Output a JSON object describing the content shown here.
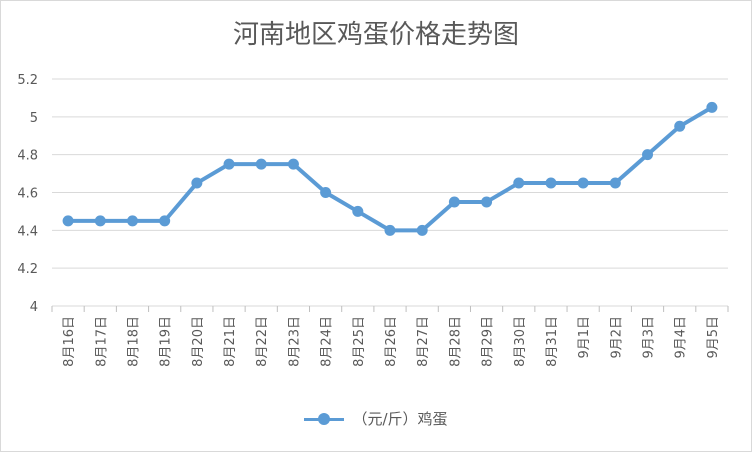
{
  "chart_data": {
    "type": "line",
    "title": "河南地区鸡蛋价格走势图",
    "categories": [
      "8月16日",
      "8月17日",
      "8月18日",
      "8月19日",
      "8月20日",
      "8月21日",
      "8月22日",
      "8月23日",
      "8月24日",
      "8月25日",
      "8月26日",
      "8月27日",
      "8月28日",
      "8月29日",
      "8月30日",
      "8月31日",
      "9月1日",
      "9月2日",
      "9月3日",
      "9月4日",
      "9月5日"
    ],
    "series": [
      {
        "name": "（元/斤）鸡蛋",
        "values": [
          4.45,
          4.45,
          4.45,
          4.45,
          4.65,
          4.75,
          4.75,
          4.75,
          4.6,
          4.5,
          4.4,
          4.4,
          4.55,
          4.55,
          4.65,
          4.65,
          4.65,
          4.65,
          4.8,
          4.95,
          5.05
        ]
      }
    ],
    "ylim": [
      4,
      5.2
    ],
    "yticks": [
      4,
      4.2,
      4.4,
      4.6,
      4.8,
      5,
      5.2
    ],
    "ytick_labels": [
      "4",
      "4.2",
      "4.4",
      "4.6",
      "4.8",
      "5",
      "5.2"
    ],
    "grid": true,
    "legend": "bottom",
    "color": "#5b9bd5"
  }
}
